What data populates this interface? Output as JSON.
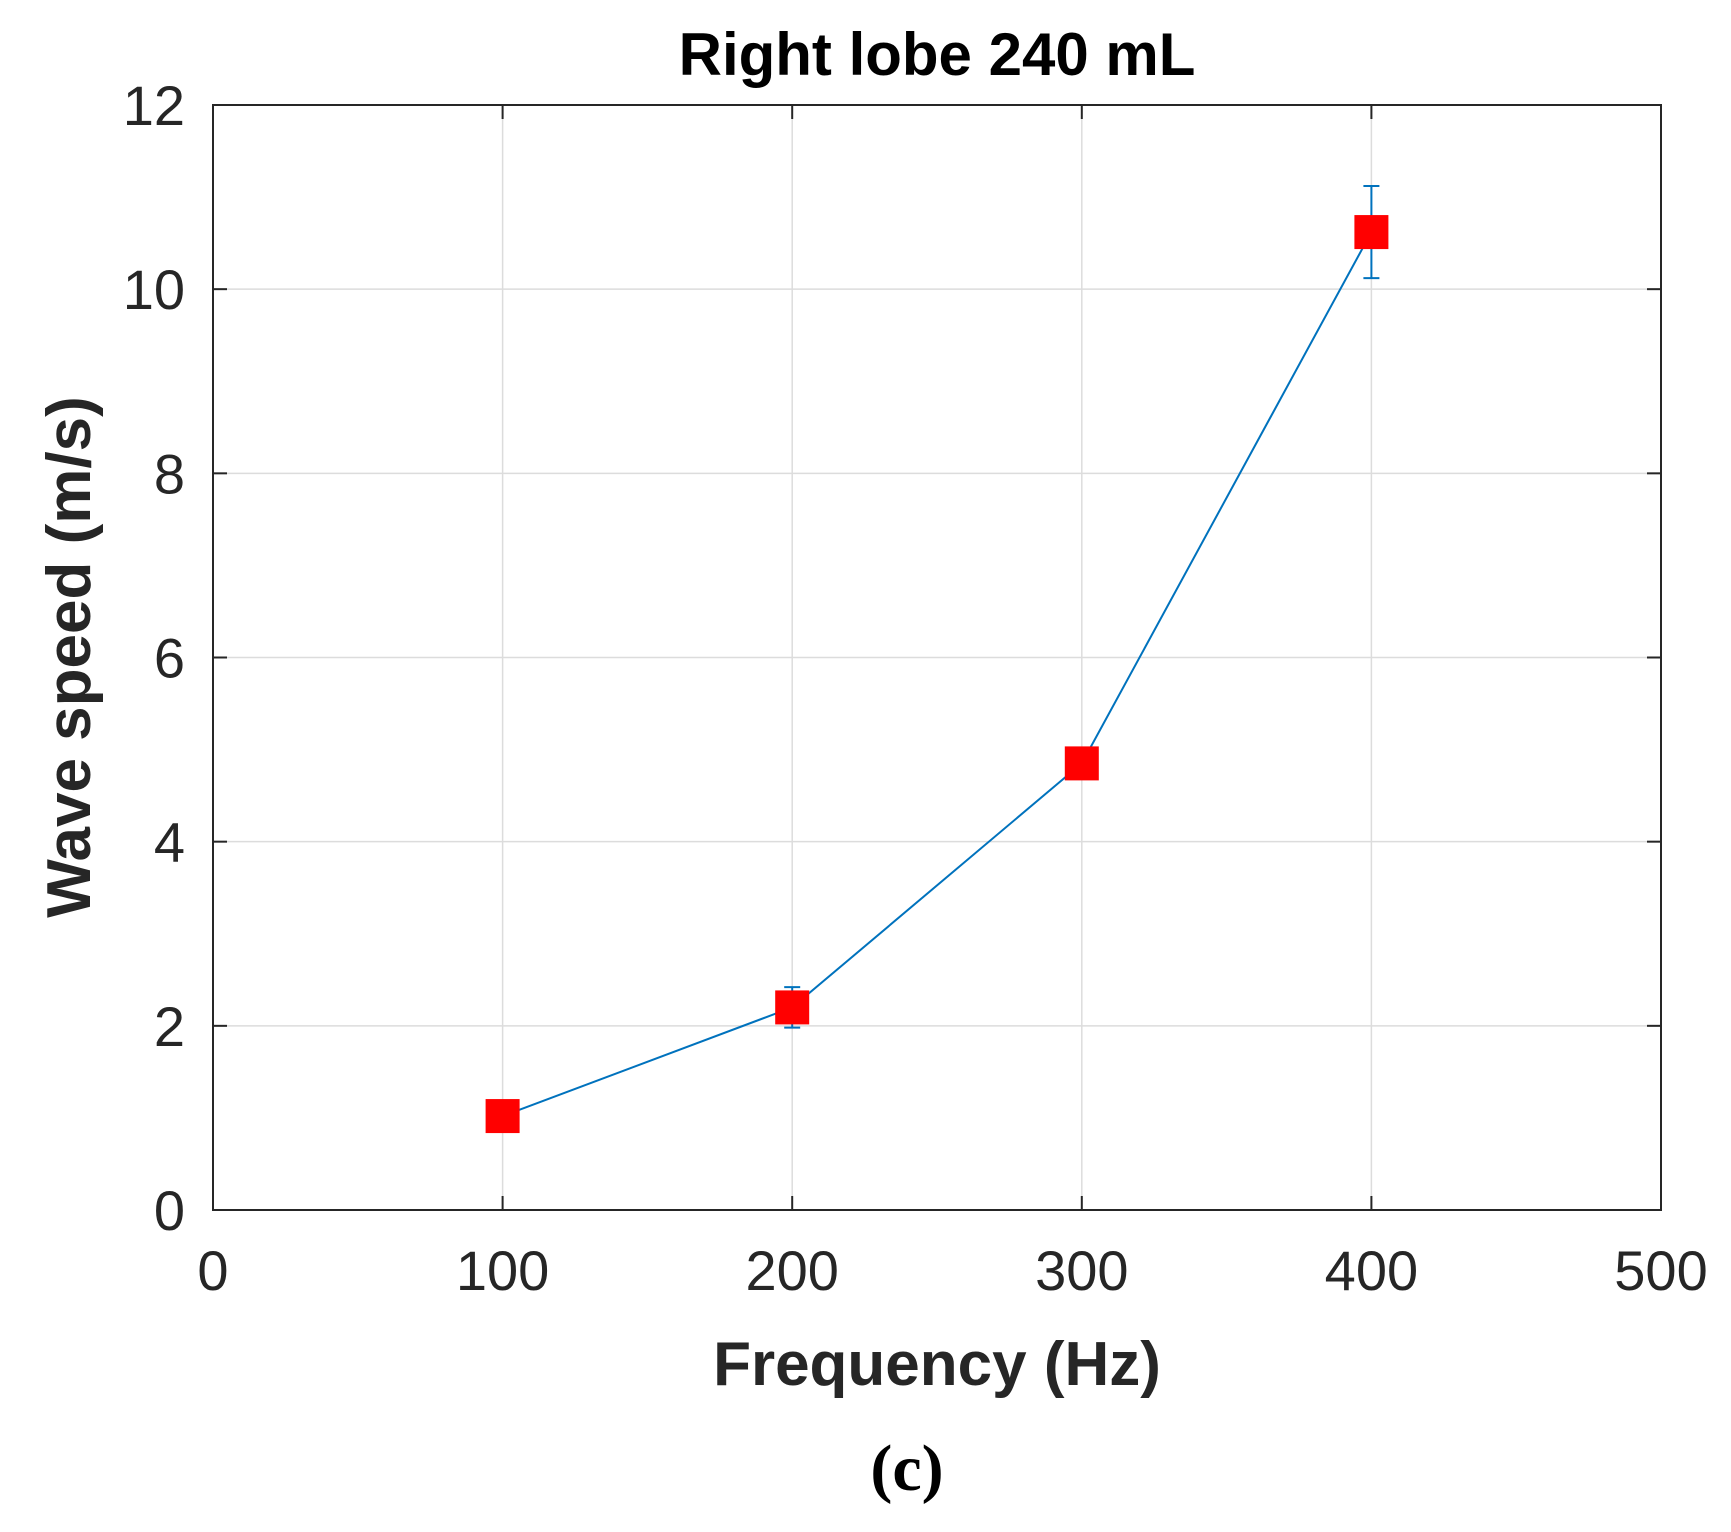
{
  "chart_data": {
    "type": "line",
    "title": "Right lobe 240 mL",
    "xlabel": "Frequency (Hz)",
    "ylabel": "Wave speed (m/s)",
    "xlim": [
      0,
      500
    ],
    "ylim": [
      0,
      12
    ],
    "xticks": [
      0,
      100,
      200,
      300,
      400,
      500
    ],
    "yticks": [
      0,
      2,
      4,
      6,
      8,
      10,
      12
    ],
    "grid": true,
    "series": [
      {
        "name": "Right lobe 240 mL",
        "x": [
          100,
          200,
          300,
          400
        ],
        "y": [
          1.02,
          2.2,
          4.85,
          10.62
        ],
        "error": [
          0.02,
          0.22,
          0.05,
          0.5
        ],
        "line_color": "#0072BD",
        "marker_color": "#FF0000",
        "marker": "square"
      }
    ]
  },
  "caption": "(c)"
}
